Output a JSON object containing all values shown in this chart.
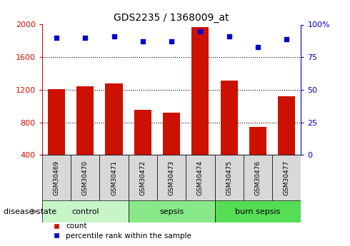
{
  "title": "GDS2235 / 1368009_at",
  "samples": [
    "GSM30469",
    "GSM30470",
    "GSM30471",
    "GSM30472",
    "GSM30473",
    "GSM30474",
    "GSM30475",
    "GSM30476",
    "GSM30477"
  ],
  "counts": [
    1210,
    1240,
    1280,
    950,
    920,
    1970,
    1310,
    740,
    1120
  ],
  "percentiles": [
    90,
    90,
    91,
    87,
    87,
    95,
    91,
    83,
    89
  ],
  "groups": [
    {
      "label": "control",
      "indices": [
        0,
        1,
        2
      ],
      "color": "#c8f5c8"
    },
    {
      "label": "sepsis",
      "indices": [
        3,
        4,
        5
      ],
      "color": "#88e888"
    },
    {
      "label": "burn sepsis",
      "indices": [
        6,
        7,
        8
      ],
      "color": "#55dd55"
    }
  ],
  "ylim_left": [
    400,
    2000
  ],
  "ylim_right": [
    0,
    100
  ],
  "yticks_left": [
    400,
    800,
    1200,
    1600,
    2000
  ],
  "yticks_right": [
    0,
    25,
    50,
    75,
    100
  ],
  "grid_values": [
    800,
    1200,
    1600
  ],
  "bar_color": "#cc1100",
  "dot_color": "#0000cc",
  "left_axis_color": "#cc1100",
  "right_axis_color": "#0000cc",
  "sample_box_color": "#d8d8d8",
  "disease_state_label": "disease state",
  "legend_count": "count",
  "legend_percentile": "percentile rank within the sample"
}
